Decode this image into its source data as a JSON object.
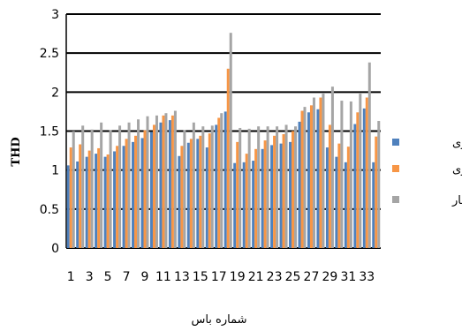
{
  "chart_data": {
    "type": "bar",
    "xlabel": "شماره باس",
    "ylabel": "THD",
    "ylim": [
      0,
      3
    ],
    "yticks": [
      "0",
      "0.5",
      "1",
      "1.5",
      "2",
      "2.5",
      "3"
    ],
    "y_tick_values": [
      0,
      0.5,
      1,
      1.5,
      2,
      2.5,
      3
    ],
    "grid": true,
    "legend_position": "right",
    "categories": [
      "1",
      "2",
      "3",
      "4",
      "5",
      "6",
      "7",
      "8",
      "9",
      "10",
      "11",
      "12",
      "13",
      "14",
      "15",
      "16",
      "17",
      "18",
      "19",
      "20",
      "21",
      "22",
      "23",
      "24",
      "25",
      "26",
      "27",
      "28",
      "29",
      "30",
      "31",
      "32",
      "33",
      "34"
    ],
    "x_tick_labels": [
      "1",
      "3",
      "5",
      "7",
      "9",
      "11",
      "13",
      "15",
      "17",
      "19",
      "21",
      "23",
      "25",
      "27",
      "29",
      "31",
      "33"
    ],
    "series": [
      {
        "name": "کم باری",
        "color": "#4f81bd",
        "values": [
          1.06,
          1.11,
          1.17,
          1.21,
          1.17,
          1.24,
          1.31,
          1.36,
          1.41,
          1.49,
          1.61,
          1.64,
          1.18,
          1.35,
          1.4,
          1.29,
          1.58,
          1.75,
          1.09,
          1.1,
          1.12,
          1.27,
          1.32,
          1.34,
          1.36,
          1.62,
          1.74,
          1.78,
          1.29,
          1.17,
          1.1,
          1.59,
          1.79,
          1.1
        ]
      },
      {
        "name": "میان باری",
        "color": "#f79646",
        "values": [
          1.29,
          1.33,
          1.25,
          1.28,
          1.2,
          1.31,
          1.4,
          1.44,
          1.51,
          1.58,
          1.7,
          1.7,
          1.31,
          1.4,
          1.44,
          1.47,
          1.67,
          2.3,
          1.36,
          1.21,
          1.27,
          1.38,
          1.44,
          1.46,
          1.5,
          1.76,
          1.83,
          1.93,
          1.58,
          1.34,
          1.3,
          1.74,
          1.93,
          1.43
        ]
      },
      {
        "name": "پیک بار",
        "color": "#a5a5a5",
        "values": [
          1.5,
          1.57,
          1.52,
          1.61,
          1.51,
          1.57,
          1.61,
          1.65,
          1.69,
          1.7,
          1.73,
          1.76,
          1.51,
          1.61,
          1.56,
          1.57,
          1.73,
          2.76,
          1.54,
          1.53,
          1.56,
          1.56,
          1.56,
          1.58,
          1.56,
          1.81,
          1.93,
          1.98,
          2.07,
          1.89,
          1.88,
          1.98,
          2.38,
          1.63
        ]
      }
    ]
  }
}
